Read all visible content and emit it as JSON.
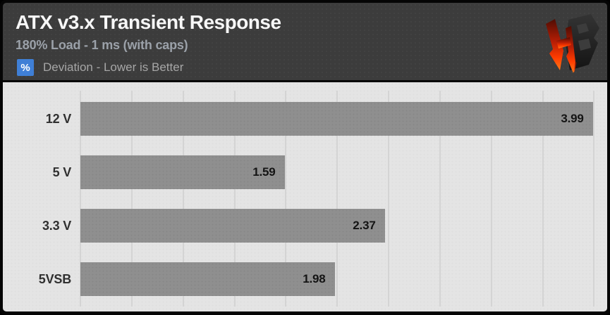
{
  "header": {
    "logo": "hardware-busters-logo"
  },
  "colors": {
    "header_bg": "#3c3c3c",
    "chart_bg": "#e4e4e4",
    "bar": "#8f8f8f",
    "gridline": "#d4d4d4",
    "badge_blue": "#3f7fd6",
    "title_text": "#f7f7f7",
    "subtitle_text": "#9ba1a9",
    "legend_text": "#a6a6a6",
    "label_text": "#303030",
    "value_text": "#141414",
    "logo_red": "#ff3c00",
    "logo_dark": "#232323"
  },
  "chart_data": {
    "type": "bar",
    "orientation": "horizontal",
    "title": "ATX v3.x Transient Response",
    "subtitle": "180% Load - 1 ms (with caps)",
    "unit_badge": "%",
    "note": "Deviation - Lower is Better",
    "categories": [
      "12 V",
      "5 V",
      "3.3 V",
      "5VSB"
    ],
    "values": [
      3.99,
      1.59,
      2.37,
      1.98
    ],
    "xlim": [
      0,
      4.08
    ],
    "gridline_interval": 0.4,
    "grid": true,
    "legend_position": "top-left",
    "value_labels": true
  }
}
